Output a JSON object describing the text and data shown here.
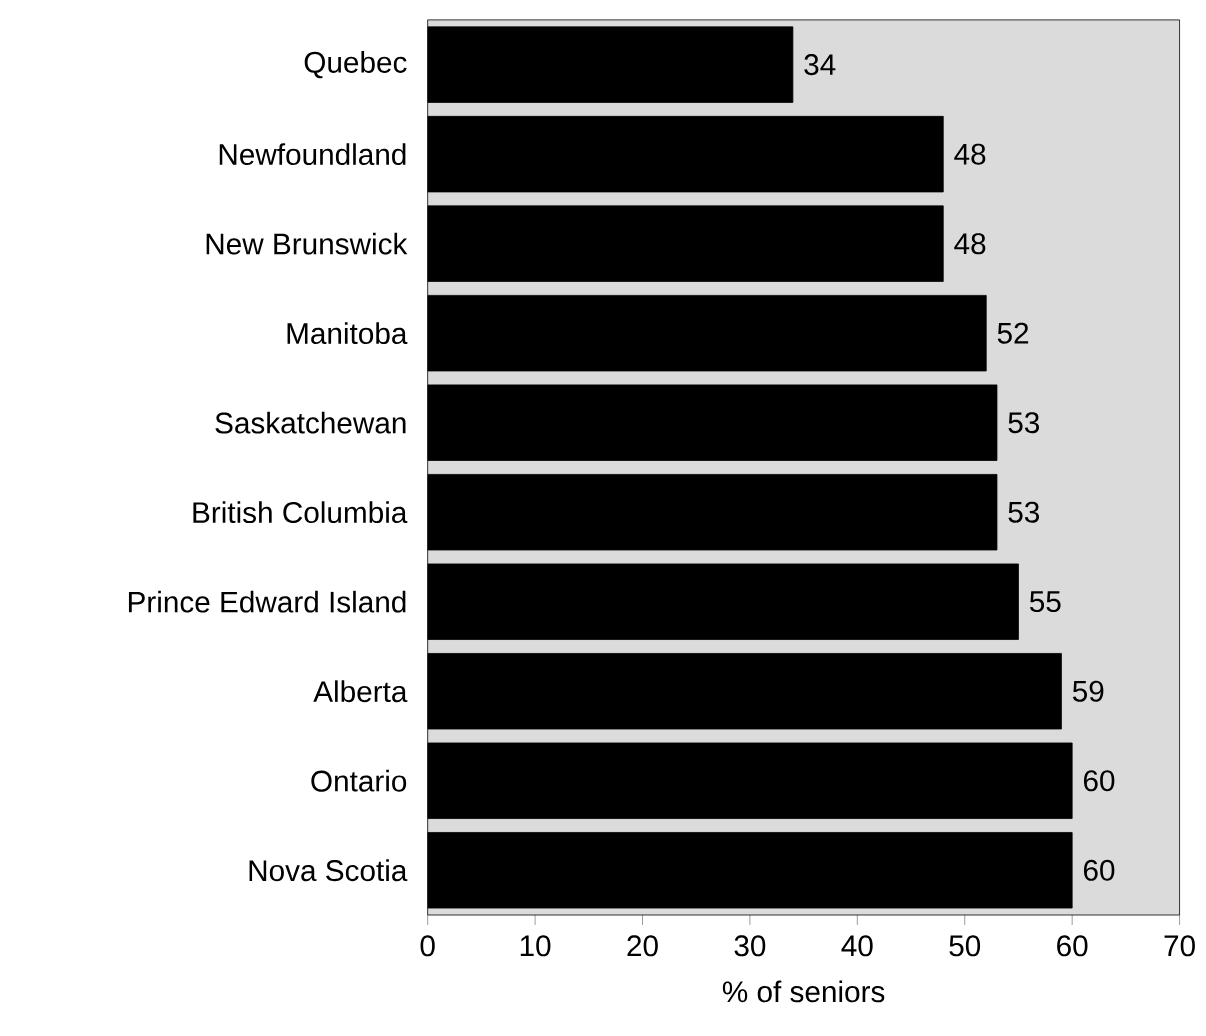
{
  "chart_data": {
    "type": "bar",
    "orientation": "horizontal",
    "xlabel": "% of seniors",
    "categories": [
      "Quebec",
      "Newfoundland",
      "New Brunswick",
      "Manitoba",
      "Saskatchewan",
      "British Columbia",
      "Prince Edward Island",
      "Alberta",
      "Ontario",
      "Nova Scotia"
    ],
    "values": [
      34,
      48,
      48,
      52,
      53,
      53,
      55,
      59,
      60,
      60
    ],
    "color": "#000000",
    "xlim": [
      0,
      70
    ],
    "xticks": [
      0,
      10,
      20,
      30,
      40,
      50,
      60,
      70
    ],
    "data_labels": true
  }
}
